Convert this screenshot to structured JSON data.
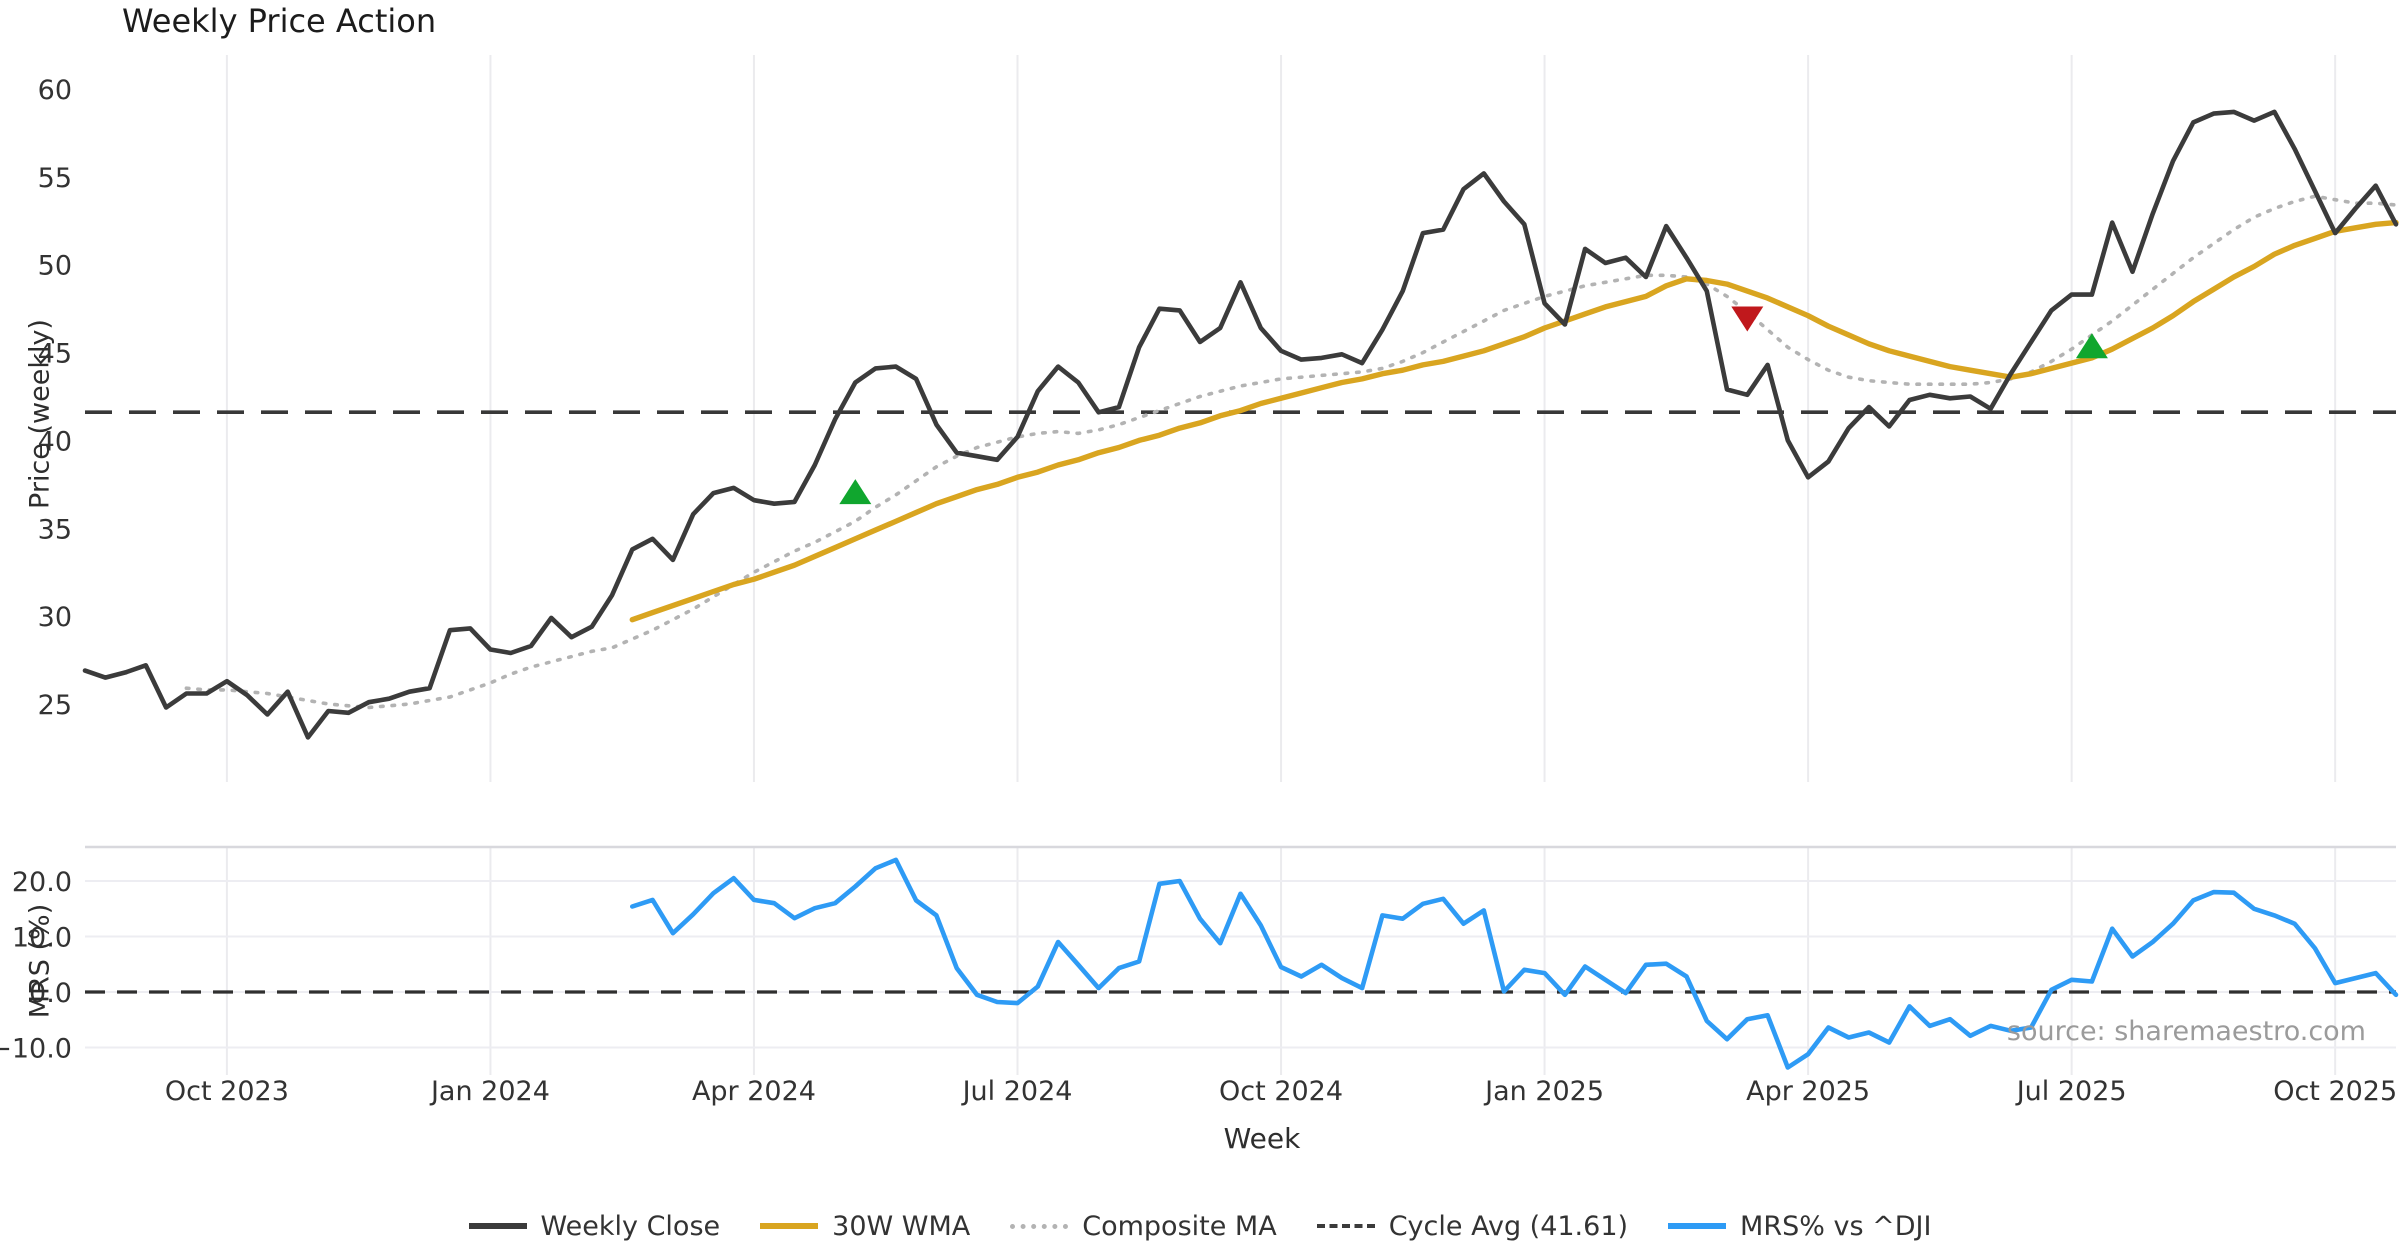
{
  "title": "Weekly Price Action",
  "xlabel": "Week",
  "source_text": "source: sharemaestro.com",
  "price_panel": {
    "ylabel": "Price (weekly)",
    "yticks": [
      60,
      55,
      50,
      45,
      40,
      35,
      30,
      25
    ],
    "cycle_avg": 41.61
  },
  "mrs_panel": {
    "ylabel": "MRS (%)",
    "ytick_labels": [
      "20.0",
      "10.0",
      "0.0",
      "−10.0"
    ],
    "ytick_values": [
      20,
      10,
      0,
      -10
    ],
    "zero_line": 0
  },
  "x_ticks": [
    {
      "label": "Oct 2023",
      "week": 7
    },
    {
      "label": "Jan 2024",
      "week": 20
    },
    {
      "label": "Apr 2024",
      "week": 33
    },
    {
      "label": "Jul 2024",
      "week": 46
    },
    {
      "label": "Oct 2024",
      "week": 59
    },
    {
      "label": "Jan 2025",
      "week": 72
    },
    {
      "label": "Apr 2025",
      "week": 85
    },
    {
      "label": "Jul 2025",
      "week": 98
    },
    {
      "label": "Oct 2025",
      "week": 111
    }
  ],
  "legend": {
    "items": [
      {
        "label": "Weekly Close",
        "swatch": "solid-dark"
      },
      {
        "label": "30W WMA",
        "swatch": "solid-gold"
      },
      {
        "label": "Composite MA",
        "swatch": "dotted-gray"
      },
      {
        "label": "Cycle Avg (41.61)",
        "swatch": "dashed-dark"
      },
      {
        "label": "MRS% vs ^DJI",
        "swatch": "solid-blue"
      }
    ]
  },
  "colors": {
    "close": "#3b3b3b",
    "wma": "#d9a520",
    "composite": "#b3b3b3",
    "cycle_avg": "#383838",
    "mrs": "#2e9bf5",
    "buy_marker": "#10a62e",
    "sell_marker": "#c0181c",
    "grid": "#ebebee",
    "mrs_top_spine": "#d8d8dd"
  },
  "chart_data": {
    "type": "line",
    "x_unit": "week",
    "start_date": "2023-08-14",
    "interval_days": 7,
    "n_points": 115,
    "price_ylim": [
      21,
      62.5
    ],
    "mrs_ylim": [
      -15,
      26
    ],
    "cycle_avg": 41.61,
    "legend_position": "bottom",
    "grid": "vertical-quarters",
    "series": [
      {
        "name": "Weekly Close",
        "panel": "price",
        "values": [
          26.9,
          26.5,
          26.8,
          27.2,
          24.8,
          25.6,
          25.6,
          26.3,
          25.5,
          24.4,
          25.7,
          23.1,
          24.6,
          24.5,
          25.1,
          25.3,
          25.7,
          25.9,
          29.2,
          29.3,
          28.1,
          27.9,
          28.3,
          29.9,
          28.8,
          29.4,
          31.2,
          33.8,
          34.4,
          33.2,
          35.8,
          37.0,
          37.3,
          36.6,
          36.4,
          36.5,
          38.6,
          41.2,
          43.3,
          44.1,
          44.2,
          43.5,
          40.9,
          39.3,
          39.1,
          38.9,
          40.2,
          42.8,
          44.2,
          43.3,
          41.6,
          41.9,
          45.3,
          47.5,
          47.4,
          45.6,
          46.4,
          49.0,
          46.4,
          45.1,
          44.6,
          44.7,
          44.9,
          44.4,
          46.3,
          48.5,
          51.8,
          52.0,
          54.3,
          55.2,
          53.6,
          52.3,
          47.8,
          46.6,
          50.9,
          50.1,
          50.4,
          49.3,
          52.2,
          50.4,
          48.5,
          42.9,
          42.6,
          44.3,
          40.0,
          37.9,
          38.8,
          40.7,
          41.9,
          40.8,
          42.3,
          42.6,
          42.4,
          42.5,
          41.8,
          43.8,
          45.6,
          47.4,
          48.3,
          48.3,
          52.4,
          49.6,
          52.9,
          55.9,
          58.1,
          58.6,
          58.7,
          58.2,
          58.7,
          56.6,
          54.2,
          51.8,
          53.2,
          54.5,
          52.3
        ]
      },
      {
        "name": "30W WMA",
        "panel": "price",
        "values": [
          null,
          null,
          null,
          null,
          null,
          null,
          null,
          null,
          null,
          null,
          null,
          null,
          null,
          null,
          null,
          null,
          null,
          null,
          null,
          null,
          null,
          null,
          null,
          null,
          null,
          null,
          null,
          29.8,
          30.2,
          30.6,
          31.0,
          31.4,
          31.8,
          32.1,
          32.5,
          32.9,
          33.4,
          33.9,
          34.4,
          34.9,
          35.4,
          35.9,
          36.4,
          36.8,
          37.2,
          37.5,
          37.9,
          38.2,
          38.6,
          38.9,
          39.3,
          39.6,
          40.0,
          40.3,
          40.7,
          41.0,
          41.4,
          41.7,
          42.1,
          42.4,
          42.7,
          43.0,
          43.3,
          43.5,
          43.8,
          44.0,
          44.3,
          44.5,
          44.8,
          45.1,
          45.5,
          45.9,
          46.4,
          46.8,
          47.2,
          47.6,
          47.9,
          48.2,
          48.8,
          49.2,
          49.1,
          48.9,
          48.5,
          48.1,
          47.6,
          47.1,
          46.5,
          46.0,
          45.5,
          45.1,
          44.8,
          44.5,
          44.2,
          44.0,
          43.8,
          43.6,
          43.8,
          44.1,
          44.4,
          44.7,
          45.2,
          45.8,
          46.4,
          47.1,
          47.9,
          48.6,
          49.3,
          49.9,
          50.6,
          51.1,
          51.5,
          51.9,
          52.1,
          52.3,
          52.4
        ]
      },
      {
        "name": "Composite MA",
        "panel": "price",
        "values": [
          null,
          null,
          null,
          null,
          null,
          25.9,
          25.8,
          25.8,
          25.7,
          25.6,
          25.4,
          25.2,
          25.0,
          24.9,
          24.8,
          24.9,
          25.0,
          25.2,
          25.4,
          25.8,
          26.2,
          26.7,
          27.1,
          27.4,
          27.7,
          28.0,
          28.2,
          28.7,
          29.2,
          29.8,
          30.4,
          31.1,
          31.8,
          32.5,
          33.1,
          33.7,
          34.2,
          34.8,
          35.4,
          36.2,
          36.9,
          37.7,
          38.5,
          39.1,
          39.6,
          39.9,
          40.2,
          40.4,
          40.5,
          40.4,
          40.6,
          40.9,
          41.3,
          41.7,
          42.1,
          42.5,
          42.8,
          43.1,
          43.3,
          43.5,
          43.6,
          43.7,
          43.8,
          43.9,
          44.1,
          44.5,
          45.0,
          45.6,
          46.2,
          46.8,
          47.4,
          47.8,
          48.2,
          48.5,
          48.8,
          49.0,
          49.2,
          49.4,
          49.4,
          49.3,
          48.9,
          48.2,
          47.3,
          46.3,
          45.3,
          44.6,
          44.0,
          43.6,
          43.4,
          43.3,
          43.2,
          43.2,
          43.2,
          43.2,
          43.3,
          43.5,
          43.9,
          44.5,
          45.2,
          46.0,
          46.8,
          47.7,
          48.6,
          49.5,
          50.4,
          51.2,
          52.0,
          52.7,
          53.2,
          53.6,
          53.9,
          53.7,
          53.5,
          53.5,
          53.4
        ]
      },
      {
        "name": "MRS% vs ^DJI",
        "panel": "mrs",
        "values": [
          null,
          null,
          null,
          null,
          null,
          null,
          null,
          null,
          null,
          null,
          null,
          null,
          null,
          null,
          null,
          null,
          null,
          null,
          null,
          null,
          null,
          null,
          null,
          null,
          null,
          null,
          null,
          15.4,
          16.6,
          10.6,
          14.0,
          17.8,
          20.5,
          16.6,
          16.0,
          13.3,
          15.1,
          16.0,
          19.0,
          22.3,
          23.8,
          16.5,
          13.8,
          4.3,
          -0.5,
          -1.8,
          -2.0,
          1.0,
          9.0,
          4.9,
          0.7,
          4.3,
          5.5,
          19.5,
          20.0,
          13.2,
          8.8,
          17.7,
          12.0,
          4.5,
          2.8,
          4.9,
          2.5,
          0.7,
          13.8,
          13.2,
          15.9,
          16.8,
          12.3,
          14.7,
          0.1,
          4.0,
          3.4,
          -0.5,
          4.6,
          2.2,
          -0.2,
          4.9,
          5.1,
          2.8,
          -5.2,
          -8.5,
          -4.9,
          -4.2,
          -13.6,
          -11.2,
          -6.4,
          -8.2,
          -7.3,
          -9.1,
          -2.6,
          -6.1,
          -4.9,
          -7.9,
          -6.1,
          -7.0,
          -6.4,
          0.4,
          2.2,
          1.9,
          11.4,
          6.4,
          9.0,
          12.3,
          16.5,
          18.0,
          17.9,
          15.0,
          13.8,
          12.3,
          7.9,
          1.6,
          2.5,
          3.4,
          -0.5
        ]
      }
    ],
    "markers": [
      {
        "type": "buy",
        "week": 38,
        "value": 37.0
      },
      {
        "type": "sell",
        "week": 82,
        "value": 47.0
      },
      {
        "type": "buy",
        "week": 99,
        "value": 45.3
      }
    ]
  }
}
